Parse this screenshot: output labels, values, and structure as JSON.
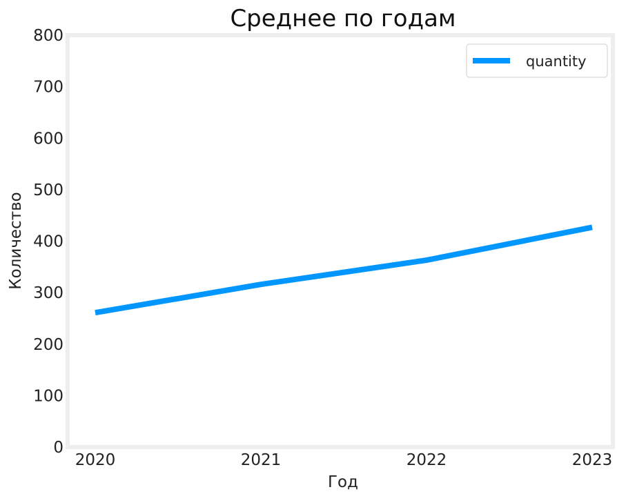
{
  "chart_data": {
    "type": "line",
    "title": "Среднее по годам",
    "xlabel": "Год",
    "ylabel": "Количество",
    "x": [
      "2020",
      "2021",
      "2022",
      "2023"
    ],
    "series": [
      {
        "name": "quantity",
        "values": [
          261,
          316,
          363,
          427
        ],
        "color": "#0096ff"
      }
    ],
    "ylim": [
      0,
      800
    ],
    "yticks": [
      "0",
      "100",
      "200",
      "300",
      "400",
      "500",
      "600",
      "700",
      "800"
    ],
    "grid": false,
    "legend_position": "top-right",
    "frame_color": "#eeeeee"
  }
}
